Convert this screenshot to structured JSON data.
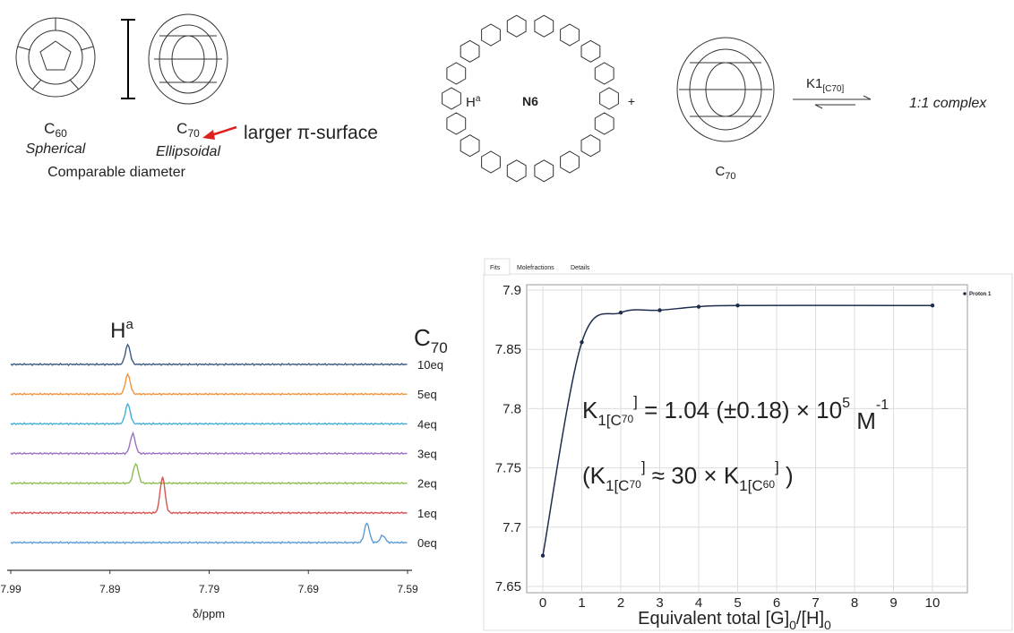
{
  "diagram": {
    "c60": {
      "base": "C",
      "sub": "60",
      "shape": "Spherical"
    },
    "c70": {
      "base": "C",
      "sub": "70",
      "shape": "Ellipsoidal"
    },
    "caption": "Comparable diameter",
    "callout": "larger π-surface",
    "host": {
      "proton": {
        "base": "H",
        "sup": "a"
      },
      "name": "N6"
    },
    "plus": "+",
    "guest": {
      "base": "C",
      "sub": "70"
    },
    "equilibrium": {
      "base": "K1",
      "sub": "[C70]"
    },
    "product": "1:1 complex"
  },
  "chart_data": [
    {
      "type": "spectra",
      "peak_label": {
        "base": "H",
        "sup": "a"
      },
      "guest_label": {
        "base": "C",
        "sub": "70"
      },
      "xlabel": "δ/ppm",
      "xlim": [
        7.99,
        7.59
      ],
      "xticks": [
        7.99,
        7.89,
        7.79,
        7.69,
        7.59
      ],
      "series": [
        {
          "name": "10eq",
          "color": "#3d5a80",
          "peaks": [
            7.872
          ]
        },
        {
          "name": "5eq",
          "color": "#f0953f",
          "peaks": [
            7.872
          ]
        },
        {
          "name": "4eq",
          "color": "#45add5",
          "peaks": [
            7.872
          ]
        },
        {
          "name": "3eq",
          "color": "#9a72c2",
          "peaks": [
            7.867
          ]
        },
        {
          "name": "2eq",
          "color": "#8dbd4e",
          "peaks": [
            7.864
          ]
        },
        {
          "name": "1eq",
          "color": "#d65452",
          "peaks": [
            7.837
          ]
        },
        {
          "name": "0eq",
          "color": "#5b9bd5",
          "peaks": [
            7.631,
            7.615
          ]
        }
      ]
    },
    {
      "type": "scatter",
      "tabs": [
        "Fits",
        "Molefractions",
        "Details"
      ],
      "xlabel": [
        "Equivalent total [G]",
        "0",
        "/[H]",
        "0"
      ],
      "xlim": [
        0,
        10
      ],
      "xticks": [
        0,
        1,
        2,
        3,
        4,
        5,
        6,
        7,
        8,
        9,
        10
      ],
      "ylim": [
        7.65,
        7.9
      ],
      "yticks": [
        7.65,
        7.7,
        7.75,
        7.8,
        7.85,
        7.9
      ],
      "grid": true,
      "legend": "top-right",
      "annotations": [
        [
          "K",
          "1[C",
          "70",
          "]",
          " = 1.04 (±0.18) × 10",
          "5",
          " M",
          "-1"
        ],
        [
          "(K",
          "1[C",
          "70",
          "]",
          " ≈ 30 × K",
          "1[C",
          "60",
          "]",
          " )"
        ]
      ],
      "series": [
        {
          "name": "Proton 1",
          "color": "#1f2d4d",
          "x": [
            0,
            1,
            2,
            3,
            4,
            5,
            10
          ],
          "values": [
            7.676,
            7.856,
            7.881,
            7.883,
            7.886,
            7.887,
            7.887
          ]
        }
      ]
    }
  ]
}
